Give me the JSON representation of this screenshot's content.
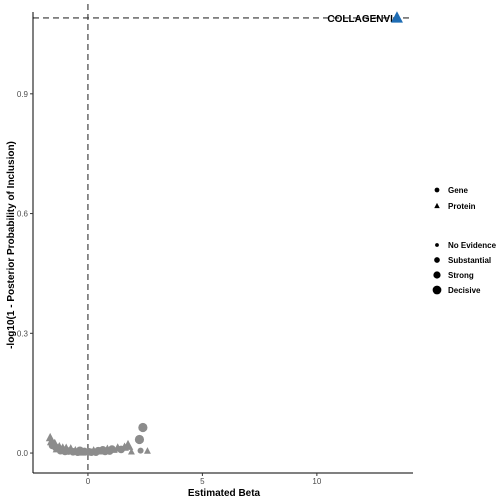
{
  "chart_data": {
    "type": "scatter",
    "xlabel": "Estimated Beta",
    "ylabel": "-log10(1 - Posterior Probability of Inclusion)",
    "x_ticks": [
      0,
      5,
      10
    ],
    "y_ticks": [
      0.0,
      0.3,
      0.6,
      0.9
    ],
    "x_tick_labels": [
      "0",
      "5",
      "10"
    ],
    "y_tick_labels": [
      "0.0",
      "0.3",
      "0.6",
      "0.9"
    ],
    "xlim": [
      -2.4,
      14.2
    ],
    "ylim": [
      -0.05,
      1.105
    ],
    "reference_lines": {
      "vertical_x": 0,
      "horizontal_y": 1.09
    },
    "grid": false,
    "colors": {
      "highlight": "#1f6db4",
      "background": "#8c8c8c",
      "ref_line": "#333333"
    },
    "highlight_point": {
      "label": "COLLAGENVI",
      "x": 13.5,
      "y": 1.09,
      "type": "Protein",
      "evidence": "Decisive"
    },
    "points": [
      {
        "x": -1.65,
        "y": 0.038,
        "shape": "triangle",
        "size": 3
      },
      {
        "x": -1.6,
        "y": 0.028,
        "shape": "triangle",
        "size": 3
      },
      {
        "x": -1.55,
        "y": 0.019,
        "shape": "circle",
        "size": 3
      },
      {
        "x": -1.45,
        "y": 0.026,
        "shape": "triangle",
        "size": 2
      },
      {
        "x": -1.4,
        "y": 0.014,
        "shape": "circle",
        "size": 3
      },
      {
        "x": -1.35,
        "y": 0.01,
        "shape": "triangle",
        "size": 3
      },
      {
        "x": -1.25,
        "y": 0.018,
        "shape": "triangle",
        "size": 2
      },
      {
        "x": -1.2,
        "y": 0.006,
        "shape": "circle",
        "size": 3
      },
      {
        "x": -1.1,
        "y": 0.012,
        "shape": "triangle",
        "size": 3
      },
      {
        "x": -1.0,
        "y": 0.004,
        "shape": "circle",
        "size": 3
      },
      {
        "x": -0.95,
        "y": 0.014,
        "shape": "triangle",
        "size": 2
      },
      {
        "x": -0.85,
        "y": 0.005,
        "shape": "circle",
        "size": 3
      },
      {
        "x": -0.75,
        "y": 0.01,
        "shape": "triangle",
        "size": 3
      },
      {
        "x": -0.65,
        "y": 0.003,
        "shape": "circle",
        "size": 3
      },
      {
        "x": -0.55,
        "y": 0.008,
        "shape": "triangle",
        "size": 2
      },
      {
        "x": -0.45,
        "y": 0.002,
        "shape": "circle",
        "size": 3
      },
      {
        "x": -0.35,
        "y": 0.007,
        "shape": "circle",
        "size": 3
      },
      {
        "x": -0.25,
        "y": 0.002,
        "shape": "triangle",
        "size": 3
      },
      {
        "x": -0.15,
        "y": 0.004,
        "shape": "circle",
        "size": 3
      },
      {
        "x": -0.05,
        "y": 0.001,
        "shape": "triangle",
        "size": 2
      },
      {
        "x": 0.05,
        "y": 0.003,
        "shape": "circle",
        "size": 3
      },
      {
        "x": 0.15,
        "y": 0.002,
        "shape": "circle",
        "size": 3
      },
      {
        "x": 0.25,
        "y": 0.005,
        "shape": "triangle",
        "size": 3
      },
      {
        "x": 0.35,
        "y": 0.002,
        "shape": "circle",
        "size": 3
      },
      {
        "x": 0.45,
        "y": 0.006,
        "shape": "circle",
        "size": 3
      },
      {
        "x": 0.55,
        "y": 0.003,
        "shape": "triangle",
        "size": 2
      },
      {
        "x": 0.65,
        "y": 0.008,
        "shape": "circle",
        "size": 3
      },
      {
        "x": 0.75,
        "y": 0.004,
        "shape": "circle",
        "size": 3
      },
      {
        "x": 0.85,
        "y": 0.009,
        "shape": "triangle",
        "size": 3
      },
      {
        "x": 0.95,
        "y": 0.005,
        "shape": "circle",
        "size": 3
      },
      {
        "x": 1.05,
        "y": 0.01,
        "shape": "circle",
        "size": 3
      },
      {
        "x": 1.15,
        "y": 0.007,
        "shape": "triangle",
        "size": 2
      },
      {
        "x": 1.3,
        "y": 0.012,
        "shape": "triangle",
        "size": 3
      },
      {
        "x": 1.45,
        "y": 0.009,
        "shape": "circle",
        "size": 3
      },
      {
        "x": 1.6,
        "y": 0.014,
        "shape": "triangle",
        "size": 3
      },
      {
        "x": 1.75,
        "y": 0.018,
        "shape": "triangle",
        "size": 4
      },
      {
        "x": 1.9,
        "y": 0.003,
        "shape": "triangle",
        "size": 2
      },
      {
        "x": 2.25,
        "y": 0.034,
        "shape": "circle",
        "size": 4
      },
      {
        "x": 2.3,
        "y": 0.006,
        "shape": "circle",
        "size": 2
      },
      {
        "x": 2.4,
        "y": 0.064,
        "shape": "circle",
        "size": 4
      },
      {
        "x": 2.6,
        "y": 0.005,
        "shape": "triangle",
        "size": 2
      }
    ],
    "legend_type": {
      "items": [
        {
          "label": "Gene",
          "shape": "circle"
        },
        {
          "label": "Protein",
          "shape": "triangle"
        }
      ]
    },
    "legend_evidence": {
      "items": [
        {
          "label": "No Evidence",
          "size": 1
        },
        {
          "label": "Substantial",
          "size": 2
        },
        {
          "label": "Strong",
          "size": 3
        },
        {
          "label": "Decisive",
          "size": 4
        }
      ]
    }
  }
}
